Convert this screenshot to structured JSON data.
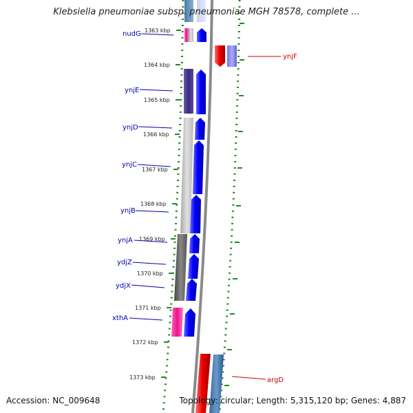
{
  "title": "Klebsiella pneumoniae subsp. pneumoniae MGH 78578, complete ...",
  "footer": {
    "accession": "Accession: NC_009648",
    "topology": "Topology: circular; Length: 5,315,120 bp; Genes: 4,887"
  },
  "ruler": {
    "ticks": [
      {
        "label": "1363 kbp"
      },
      {
        "label": "1364 kbp"
      },
      {
        "label": "1365 kbp"
      },
      {
        "label": "1366 kbp"
      },
      {
        "label": "1367 kbp"
      },
      {
        "label": "1368 kbp"
      },
      {
        "label": "1369 kbp"
      },
      {
        "label": "1370 kbp"
      },
      {
        "label": "1371 kbp"
      },
      {
        "label": "1372 kbp"
      },
      {
        "label": "1373 kbp"
      }
    ]
  },
  "genes": [
    {
      "name": "nudG",
      "strand": "left"
    },
    {
      "name": "ynjF",
      "strand": "right"
    },
    {
      "name": "ynjE",
      "strand": "left"
    },
    {
      "name": "ynjD",
      "strand": "left"
    },
    {
      "name": "ynjC",
      "strand": "left"
    },
    {
      "name": "ynjB",
      "strand": "left"
    },
    {
      "name": "ynjA",
      "strand": "left"
    },
    {
      "name": "ydjZ",
      "strand": "left"
    },
    {
      "name": "ydjX",
      "strand": "left"
    },
    {
      "name": "xthA",
      "strand": "left"
    },
    {
      "name": "argD",
      "strand": "right"
    }
  ],
  "colors": {
    "forward_gene": "#0000ee",
    "reverse_gene": "#ee0000",
    "gene_label_forward": "#0000aa",
    "gene_label_reverse": "#cc0000",
    "backbone": "#888888",
    "ruler_dots": "#228822"
  }
}
